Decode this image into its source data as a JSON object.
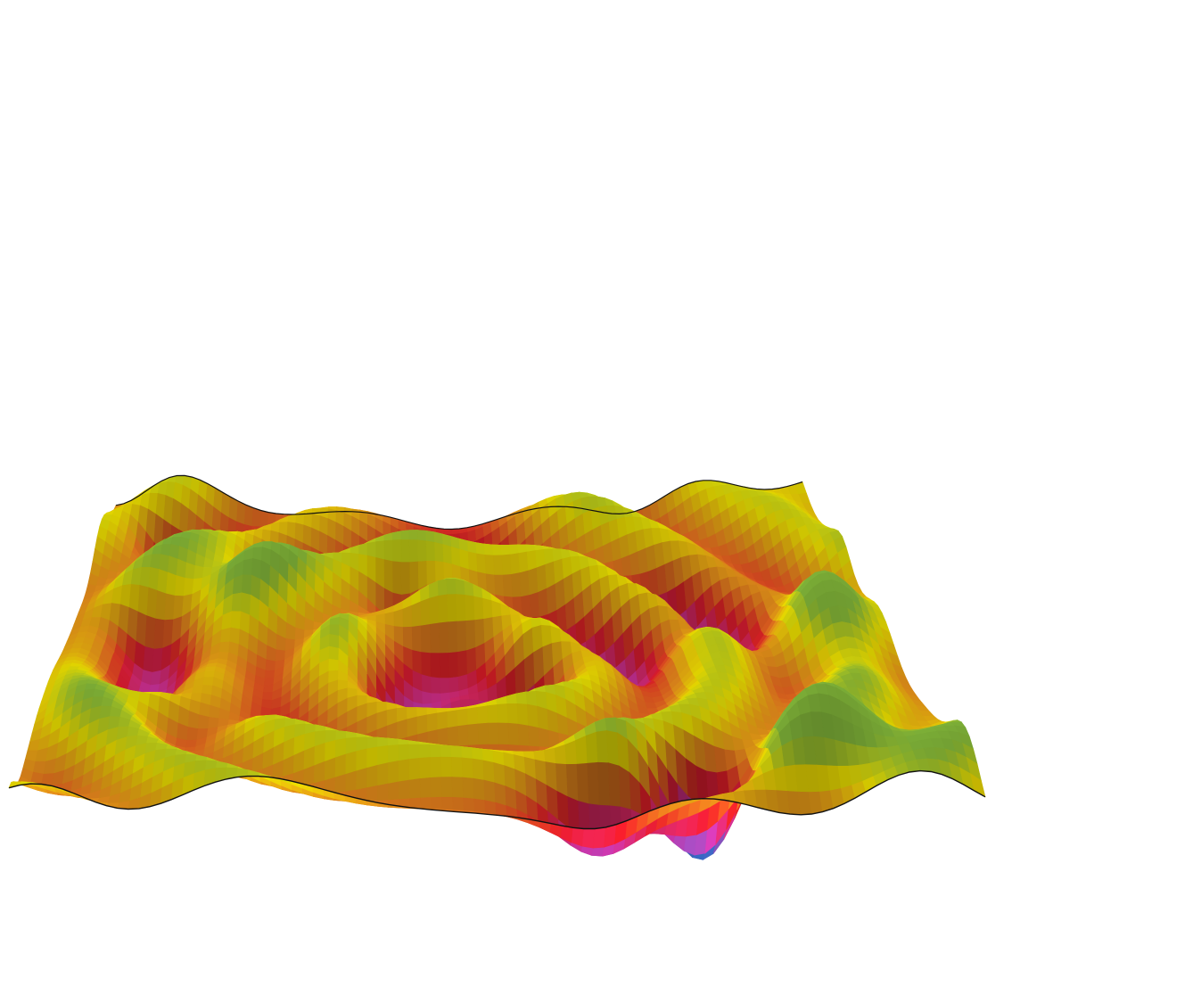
{
  "figure": {
    "kind": "3d-surface-render",
    "background": "#ffffff",
    "edge_color": "#111111",
    "colormap": [
      "#3b6fd0",
      "#d838b4",
      "#ee1c2a",
      "#f7941e",
      "#fff200",
      "#8dc63f"
    ]
  }
}
